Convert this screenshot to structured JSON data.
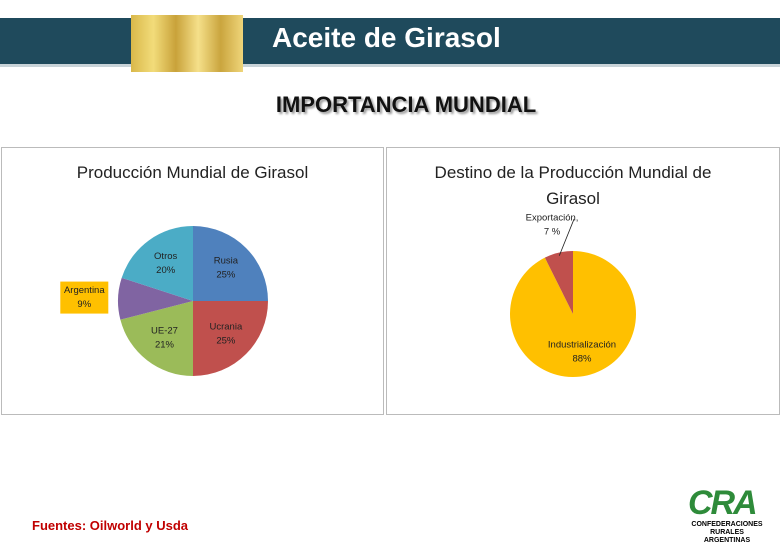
{
  "header": {
    "title": "Aceite de Girasol",
    "subtitle": "IMPORTANCIA  MUNDIAL"
  },
  "chart_data": [
    {
      "type": "pie",
      "title": "Producción Mundial de Girasol",
      "categories": [
        "Rusia",
        "Ucrania",
        "UE-27",
        "Argentina",
        "Otros"
      ],
      "values": [
        25,
        25,
        21,
        9,
        20
      ],
      "value_labels": [
        "25%",
        "25%",
        "21%",
        "9%",
        "20%"
      ],
      "colors": [
        "#4f81bd",
        "#c0504d",
        "#9bbb59",
        "#8064a2",
        "#4bacc6"
      ],
      "small_label_fill": "#ffc000"
    },
    {
      "type": "pie",
      "title": "Destino de la Producción Mundial de Girasol",
      "categories": [
        "Industrialización",
        "Exportación,"
      ],
      "values": [
        88,
        7
      ],
      "value_labels": [
        "88%",
        "7 %"
      ],
      "colors": [
        "#ffc000",
        "#c0504d"
      ]
    }
  ],
  "footer": {
    "source": "Fuentes: Oilworld y Usda",
    "logo": "CRA",
    "logo_caption": "CONFEDERACIONES RURALES ARGENTINAS"
  }
}
